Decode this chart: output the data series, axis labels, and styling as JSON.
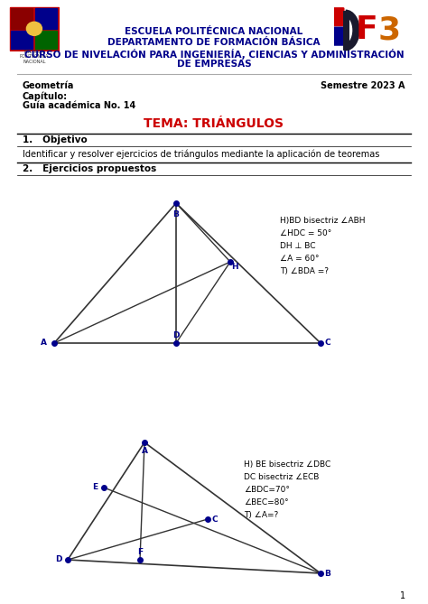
{
  "bg_color": "#ffffff",
  "header_line1": "ESCUELA POLITÉCNICA NACIONAL",
  "header_line2": "DEPARTAMENTO DE FORMACIÓN BÁSICA",
  "header_line3": "CURSO DE NIVELACIÓN PARA INGENIERÍA, CIENCIAS Y ADMINISTRACIÓN",
  "header_line4": "DE EMPRESAS",
  "header_color": "#00008B",
  "left_text1": "Geometría",
  "left_text2": "Capítulo:",
  "left_text3": "Guía académica No. 14",
  "right_text": "Semestre 2023 A",
  "tema": "TEMA: TRIÁNGULOS",
  "tema_color": "#cc0000",
  "section1_title": "1.   Objetivo",
  "section1_body": "Identificar y resolver ejercicios de triángulos mediante la aplicación de teoremas",
  "section2_title": "2.   Ejercicios propuestos",
  "triangle1_notes": [
    "H)BD bisectriz ∠ABH",
    "∠HDC = 50°",
    "DH ⊥ BC",
    "∠A = 60°",
    "T) ∠BDA =?"
  ],
  "triangle2_notes": [
    "H) BE bisectriz ∠DBC",
    "DC bisectriz ∠ECB",
    "∠BDC=70°",
    "∠BEC=80°",
    "T) ∠A=?"
  ],
  "point_color": "#00008B",
  "line_color": "#333333",
  "page_number": "1",
  "font_color_body": "#000000",
  "font_color_bold": "#000000"
}
